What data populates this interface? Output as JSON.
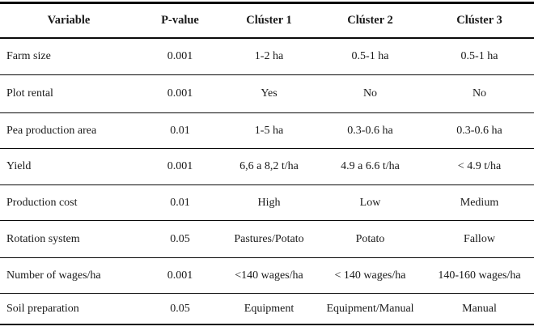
{
  "page": {
    "background_color": "#ffffff",
    "text_color": "#1a1a1a",
    "rule_color": "#0a0a0a"
  },
  "table": {
    "columns": [
      {
        "label": "Variable"
      },
      {
        "label": "P-value"
      },
      {
        "label": "Clúster 1"
      },
      {
        "label": "Clúster 2"
      },
      {
        "label": "Clúster 3"
      }
    ],
    "rows": [
      [
        "Farm size",
        "0.001",
        "1-2 ha",
        "0.5-1 ha",
        "0.5-1 ha"
      ],
      [
        "Plot rental",
        "0.001",
        "Yes",
        "No",
        "No"
      ],
      [
        "Pea production area",
        "0.01",
        "1-5 ha",
        "0.3-0.6 ha",
        "0.3-0.6 ha"
      ],
      [
        "Yield",
        "0.001",
        "6,6 a 8,2 t/ha",
        "4.9 a 6.6 t/ha",
        "< 4.9 t/ha"
      ],
      [
        "Production cost",
        "0.01",
        "High",
        "Low",
        "Medium"
      ],
      [
        "Rotation system",
        "0.05",
        "Pastures/Potato",
        "Potato",
        "Fallow"
      ],
      [
        "Number of wages/ha",
        "0.001",
        "<140 wages/ha",
        "< 140 wages/ha",
        "140-160 wages/​ha"
      ],
      [
        "Soil preparation",
        "0.05",
        "Equipment",
        "Equipment/Manual",
        "Manual"
      ]
    ]
  }
}
